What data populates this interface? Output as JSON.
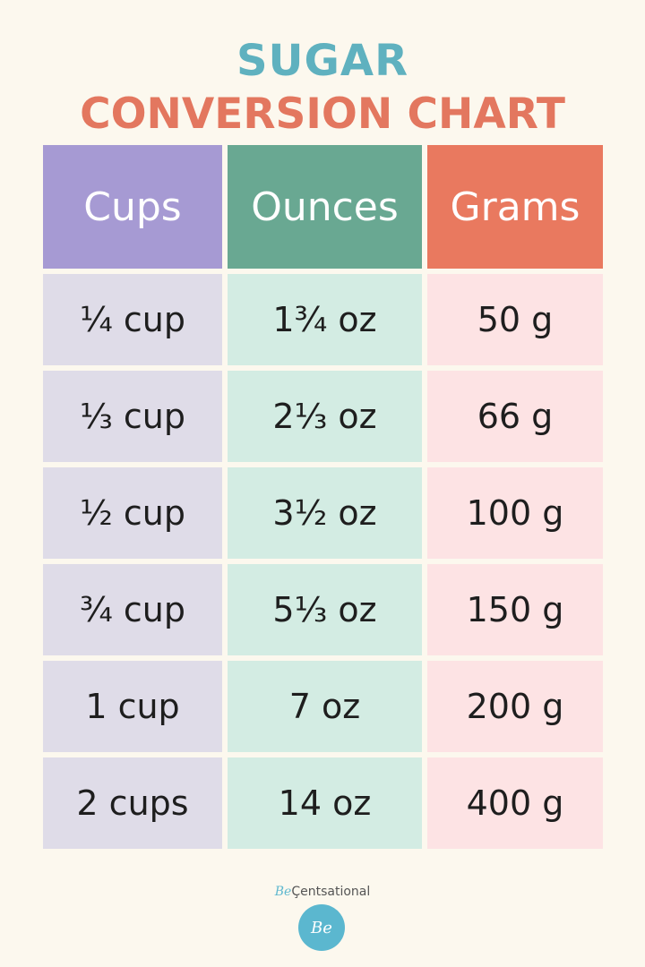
{
  "title": {
    "line1": "SUGAR",
    "line2": "CONVERSION CHART"
  },
  "table": {
    "headers": [
      "Cups",
      "Ounces",
      "Grams"
    ],
    "rows": [
      [
        "¼ cup",
        "1¾ oz",
        "50 g"
      ],
      [
        "⅓ cup",
        "2⅓ oz",
        "66 g"
      ],
      [
        "½ cup",
        "3½ oz",
        "100 g"
      ],
      [
        "¾ cup",
        "5⅓ oz",
        "150 g"
      ],
      [
        "1 cup",
        "7 oz",
        "200 g"
      ],
      [
        "2 cups",
        "14 oz",
        "400 g"
      ]
    ]
  },
  "colors": {
    "title_top": "#5fb1bf",
    "title_bottom": "#e3775f",
    "cups": "#a69ad3",
    "ounces": "#69a892",
    "grams": "#e9795f"
  },
  "brand": {
    "prefix": "Be",
    "name": "Çentsational",
    "badge": "Be"
  }
}
